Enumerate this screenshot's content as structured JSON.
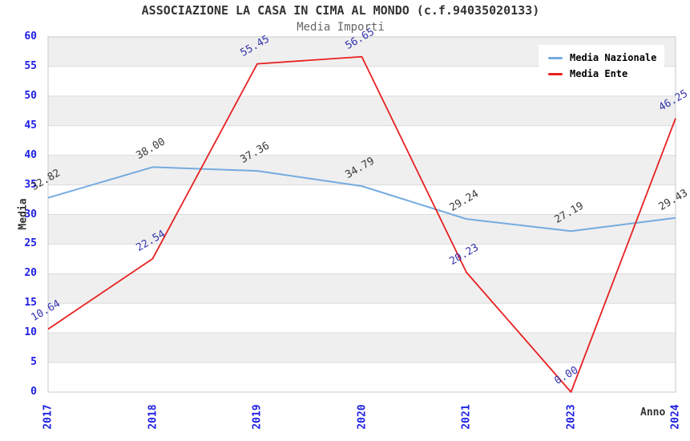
{
  "chart_data": {
    "type": "line",
    "title": "ASSOCIAZIONE LA CASA IN CIMA AL MONDO (c.f.94035020133)",
    "subtitle": "Media Importi",
    "xlabel": "Anno",
    "ylabel": "Media",
    "categories": [
      "2017",
      "2018",
      "2019",
      "2020",
      "2021",
      "2023",
      "2024"
    ],
    "series": [
      {
        "name": "Media Nazionale",
        "color": "#74abdf",
        "label_color": "#3a3a3a",
        "values": [
          32.82,
          38.0,
          37.36,
          34.79,
          29.24,
          27.19,
          29.43
        ]
      },
      {
        "name": "Media Ente",
        "color": "#e82021",
        "label_color": "#3434ae",
        "values": [
          10.64,
          22.54,
          55.45,
          56.65,
          20.23,
          0.0,
          46.25
        ]
      }
    ],
    "ylim": [
      0,
      60
    ],
    "ytick_step": 5,
    "grid": true,
    "legend_position": "top-right",
    "axis_tick_color": "#1e1ee4",
    "band_colors": [
      "#ffffff",
      "#efefef"
    ],
    "gridline_color": "#dcdcdc",
    "plot_border_color": "#c8c8c8"
  }
}
